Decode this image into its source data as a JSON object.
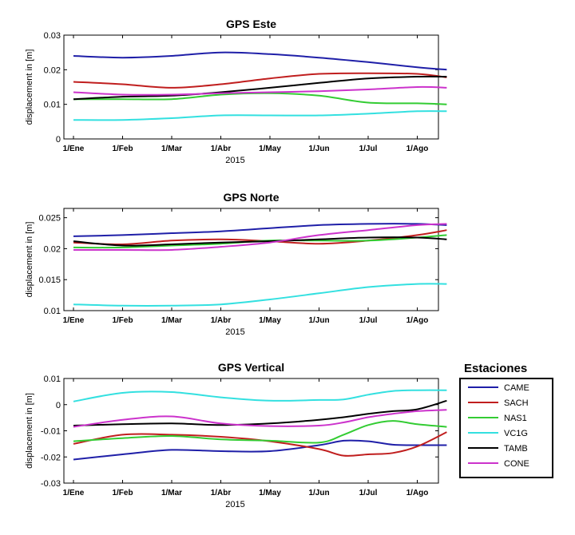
{
  "legend": {
    "title": "Estaciones",
    "entries": [
      {
        "name": "CAME",
        "color": "#1f1fa8"
      },
      {
        "name": "SACH",
        "color": "#c01e1e"
      },
      {
        "name": "NAS1",
        "color": "#33cc33"
      },
      {
        "name": "VC1G",
        "color": "#33e0e0"
      },
      {
        "name": "TAMB",
        "color": "#000000"
      },
      {
        "name": "CONE",
        "color": "#cc33cc"
      }
    ]
  },
  "chart_data": [
    {
      "type": "line",
      "title": "GPS Este",
      "xlabel": "2015",
      "ylabel": "displacement in [m]",
      "ylim": [
        0,
        0.03
      ],
      "yticks": [
        "0",
        "0.01",
        "0.02",
        "0.03"
      ],
      "xticks": [
        "1/Ene",
        "1/Feb",
        "1/Mar",
        "1/Abr",
        "1/May",
        "1/Jun",
        "1/Jul",
        "1/Ago"
      ],
      "x": [
        0,
        1,
        2,
        3,
        4,
        5,
        6,
        7,
        7.6
      ],
      "series": [
        {
          "name": "CAME",
          "color": "#1f1fa8",
          "values": [
            0.024,
            0.0235,
            0.024,
            0.025,
            0.0245,
            0.0235,
            0.0222,
            0.0207,
            0.02
          ]
        },
        {
          "name": "SACH",
          "color": "#c01e1e",
          "values": [
            0.0165,
            0.0158,
            0.0148,
            0.0158,
            0.0175,
            0.0188,
            0.019,
            0.0188,
            0.0178
          ]
        },
        {
          "name": "NAS1",
          "color": "#33cc33",
          "values": [
            0.0115,
            0.0115,
            0.0115,
            0.0128,
            0.0132,
            0.0125,
            0.0105,
            0.0103,
            0.01
          ]
        },
        {
          "name": "VC1G",
          "color": "#33e0e0",
          "values": [
            0.0055,
            0.0055,
            0.006,
            0.0068,
            0.0068,
            0.0068,
            0.0073,
            0.008,
            0.008
          ]
        },
        {
          "name": "TAMB",
          "color": "#000000",
          "values": [
            0.0115,
            0.0122,
            0.0125,
            0.0135,
            0.0148,
            0.0162,
            0.0175,
            0.018,
            0.018
          ]
        },
        {
          "name": "CONE",
          "color": "#cc33cc",
          "values": [
            0.0135,
            0.0128,
            0.0128,
            0.0132,
            0.0135,
            0.0138,
            0.0143,
            0.015,
            0.0148
          ]
        }
      ]
    },
    {
      "type": "line",
      "title": "GPS Norte",
      "xlabel": "2015",
      "ylabel": "displacement in [m]",
      "ylim": [
        0.01,
        0.0265
      ],
      "yticks": [
        "0.01",
        "0.015",
        "0.02",
        "0.025"
      ],
      "xticks": [
        "1/Ene",
        "1/Feb",
        "1/Mar",
        "1/Abr",
        "1/May",
        "1/Jun",
        "1/Jul",
        "1/Ago"
      ],
      "x": [
        0,
        1,
        2,
        3,
        4,
        5,
        6,
        7,
        7.6
      ],
      "series": [
        {
          "name": "CAME",
          "color": "#1f1fa8",
          "values": [
            0.022,
            0.0222,
            0.0225,
            0.0228,
            0.0233,
            0.0238,
            0.024,
            0.024,
            0.0238
          ]
        },
        {
          "name": "SACH",
          "color": "#c01e1e",
          "values": [
            0.021,
            0.0207,
            0.0213,
            0.0215,
            0.0212,
            0.0208,
            0.0213,
            0.0222,
            0.023
          ]
        },
        {
          "name": "NAS1",
          "color": "#33cc33",
          "values": [
            0.0202,
            0.0202,
            0.0205,
            0.0208,
            0.0213,
            0.0213,
            0.0213,
            0.0218,
            0.0222
          ]
        },
        {
          "name": "VC1G",
          "color": "#33e0e0",
          "values": [
            0.011,
            0.0108,
            0.0108,
            0.011,
            0.0118,
            0.0128,
            0.0138,
            0.0143,
            0.0143
          ]
        },
        {
          "name": "TAMB",
          "color": "#000000",
          "values": [
            0.0212,
            0.0205,
            0.0207,
            0.021,
            0.0212,
            0.0215,
            0.0218,
            0.0218,
            0.0215
          ]
        },
        {
          "name": "CONE",
          "color": "#cc33cc",
          "values": [
            0.0198,
            0.0198,
            0.0198,
            0.0203,
            0.021,
            0.0222,
            0.023,
            0.0238,
            0.024
          ]
        }
      ]
    },
    {
      "type": "line",
      "title": "GPS Vertical",
      "xlabel": "2015",
      "ylabel": "displacement in [m]",
      "ylim": [
        -0.03,
        0.01
      ],
      "yticks": [
        "-0.03",
        "-0.02",
        "-0.01",
        "0",
        "0.01"
      ],
      "xticks": [
        "1/Ene",
        "1/Feb",
        "1/Mar",
        "1/Abr",
        "1/May",
        "1/Jun",
        "1/Jul",
        "1/Ago"
      ],
      "x": [
        0,
        1,
        2,
        3,
        4,
        5,
        5.5,
        6,
        6.5,
        7,
        7.6
      ],
      "series": [
        {
          "name": "CAME",
          "color": "#1f1fa8",
          "values": [
            -0.021,
            -0.019,
            -0.0173,
            -0.0178,
            -0.0178,
            -0.0155,
            -0.0138,
            -0.014,
            -0.0153,
            -0.0155,
            -0.0155
          ]
        },
        {
          "name": "SACH",
          "color": "#c01e1e",
          "values": [
            -0.015,
            -0.0115,
            -0.0115,
            -0.0123,
            -0.014,
            -0.017,
            -0.0195,
            -0.019,
            -0.0185,
            -0.016,
            -0.0105
          ]
        },
        {
          "name": "NAS1",
          "color": "#33cc33",
          "values": [
            -0.014,
            -0.0128,
            -0.012,
            -0.0133,
            -0.0138,
            -0.0145,
            -0.0115,
            -0.0078,
            -0.0062,
            -0.0075,
            -0.0085
          ]
        },
        {
          "name": "VC1G",
          "color": "#33e0e0",
          "values": [
            0.0012,
            0.0045,
            0.0048,
            0.0028,
            0.0015,
            0.0018,
            0.002,
            0.0038,
            0.0052,
            0.0055,
            0.0055
          ]
        },
        {
          "name": "TAMB",
          "color": "#000000",
          "values": [
            -0.008,
            -0.0075,
            -0.0072,
            -0.0078,
            -0.0072,
            -0.0058,
            -0.0048,
            -0.0035,
            -0.0025,
            -0.0018,
            0.0015
          ]
        },
        {
          "name": "CONE",
          "color": "#cc33cc",
          "values": [
            -0.0085,
            -0.0058,
            -0.0045,
            -0.0072,
            -0.0082,
            -0.008,
            -0.0068,
            -0.0048,
            -0.0035,
            -0.0025,
            -0.002
          ]
        }
      ]
    }
  ]
}
